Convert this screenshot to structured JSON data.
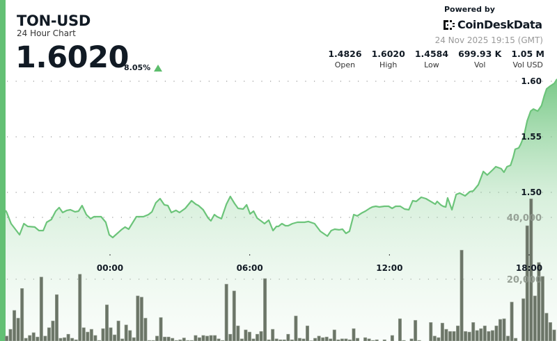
{
  "header": {
    "title": "TON-USD",
    "subtitle": "24 Hour Chart",
    "price": "1.6020",
    "change": "8.05%",
    "change_direction": "up",
    "change_icon": "triangle-up-icon"
  },
  "branding": {
    "powered_by": "Powered by",
    "logo_text": "CoinDeskData",
    "date": "24 Nov 2025 19:15 (GMT)"
  },
  "stats": [
    {
      "value": "1.4826",
      "label": "Open"
    },
    {
      "value": "1.6020",
      "label": "High"
    },
    {
      "value": "1.4584",
      "label": "Low"
    },
    {
      "value": "699.93 K",
      "label": "Vol"
    },
    {
      "value": "1.05 M",
      "label": "Vol USD"
    }
  ],
  "colors": {
    "accent": "#63c074",
    "line": "#6cc47a",
    "volume_bar": "#6b7567",
    "text": "#111a24"
  },
  "chart_data": {
    "type": "line",
    "grid": true,
    "price_axis": {
      "ticks": [
        "1.50",
        "1.55",
        "1.60"
      ],
      "ylim": [
        1.4475,
        1.6075
      ]
    },
    "volume_axis": {
      "ticks": [
        "20,000",
        "40,000"
      ],
      "ylim": [
        0,
        50000
      ]
    },
    "time_ticks": [
      "00:00",
      "06:00",
      "12:00",
      "18:00"
    ],
    "price_series": [
      [
        "19:31",
        1.4838
      ],
      [
        "19:34",
        1.4819
      ],
      [
        "19:45",
        1.4719
      ],
      [
        "20:07",
        1.4619
      ],
      [
        "20:18",
        1.4719
      ],
      [
        "20:28",
        1.4694
      ],
      [
        "20:46",
        1.4688
      ],
      [
        "20:57",
        1.4656
      ],
      [
        "21:08",
        1.4656
      ],
      [
        "21:17",
        1.4731
      ],
      [
        "21:29",
        1.4756
      ],
      [
        "21:40",
        1.4831
      ],
      [
        "21:49",
        1.4863
      ],
      [
        "21:58",
        1.4819
      ],
      [
        "22:09",
        1.4838
      ],
      [
        "22:18",
        1.4844
      ],
      [
        "22:30",
        1.4825
      ],
      [
        "22:39",
        1.4831
      ],
      [
        "22:48",
        1.4881
      ],
      [
        "22:59",
        1.48
      ],
      [
        "23:10",
        1.4763
      ],
      [
        "23:19",
        1.4781
      ],
      [
        "23:37",
        1.4781
      ],
      [
        "23:49",
        1.4731
      ],
      [
        "23:58",
        1.4619
      ],
      [
        "00:07",
        1.4594
      ],
      [
        "00:29",
        1.4663
      ],
      [
        "00:39",
        1.4688
      ],
      [
        "00:48",
        1.4669
      ],
      [
        "01:08",
        1.4781
      ],
      [
        "01:26",
        1.4781
      ],
      [
        "01:39",
        1.48
      ],
      [
        "01:48",
        1.4825
      ],
      [
        "01:58",
        1.4906
      ],
      [
        "02:09",
        1.4944
      ],
      [
        "02:20",
        1.4888
      ],
      [
        "02:29",
        1.4881
      ],
      [
        "02:38",
        1.4819
      ],
      [
        "02:50",
        1.4838
      ],
      [
        "02:59",
        1.4819
      ],
      [
        "03:14",
        1.4856
      ],
      [
        "03:30",
        1.4925
      ],
      [
        "03:41",
        1.4894
      ],
      [
        "03:48",
        1.4881
      ],
      [
        "04:00",
        1.4844
      ],
      [
        "04:13",
        1.4769
      ],
      [
        "04:20",
        1.4744
      ],
      [
        "04:29",
        1.48
      ],
      [
        "04:36",
        1.4781
      ],
      [
        "04:47",
        1.4763
      ],
      [
        "05:00",
        1.4894
      ],
      [
        "05:10",
        1.4963
      ],
      [
        "05:21",
        1.49
      ],
      [
        "05:30",
        1.4856
      ],
      [
        "05:43",
        1.485
      ],
      [
        "05:52",
        1.4888
      ],
      [
        "06:01",
        1.4806
      ],
      [
        "06:10",
        1.4831
      ],
      [
        "06:19",
        1.4769
      ],
      [
        "06:31",
        1.4738
      ],
      [
        "06:38",
        1.4719
      ],
      [
        "06:49",
        1.475
      ],
      [
        "07:00",
        1.4656
      ],
      [
        "07:09",
        1.4694
      ],
      [
        "07:14",
        1.4694
      ],
      [
        "07:23",
        1.4719
      ],
      [
        "07:32",
        1.47
      ],
      [
        "07:39",
        1.47
      ],
      [
        "07:50",
        1.4719
      ],
      [
        "08:03",
        1.4731
      ],
      [
        "08:21",
        1.4731
      ],
      [
        "08:31",
        1.4738
      ],
      [
        "08:47",
        1.4719
      ],
      [
        "09:02",
        1.465
      ],
      [
        "09:20",
        1.4606
      ],
      [
        "09:30",
        1.4656
      ],
      [
        "09:39",
        1.4669
      ],
      [
        "09:50",
        1.4663
      ],
      [
        "09:59",
        1.4669
      ],
      [
        "10:08",
        1.4631
      ],
      [
        "10:17",
        1.465
      ],
      [
        "10:28",
        1.48
      ],
      [
        "10:37",
        1.4788
      ],
      [
        "10:48",
        1.4813
      ],
      [
        "10:58",
        1.4831
      ],
      [
        "11:09",
        1.4856
      ],
      [
        "11:16",
        1.4869
      ],
      [
        "11:25",
        1.4875
      ],
      [
        "11:34",
        1.4869
      ],
      [
        "11:47",
        1.4875
      ],
      [
        "11:58",
        1.4875
      ],
      [
        "12:07",
        1.4856
      ],
      [
        "12:16",
        1.4875
      ],
      [
        "12:28",
        1.4875
      ],
      [
        "12:39",
        1.485
      ],
      [
        "12:50",
        1.4844
      ],
      [
        "13:00",
        1.4925
      ],
      [
        "13:09",
        1.4919
      ],
      [
        "13:22",
        1.4956
      ],
      [
        "13:34",
        1.4944
      ],
      [
        "13:49",
        1.4913
      ],
      [
        "13:58",
        1.4894
      ],
      [
        "14:03",
        1.4919
      ],
      [
        "14:12",
        1.4888
      ],
      [
        "14:18",
        1.4875
      ],
      [
        "14:25",
        1.4869
      ],
      [
        "14:30",
        1.495
      ],
      [
        "14:41",
        1.4844
      ],
      [
        "14:52",
        1.4981
      ],
      [
        "15:01",
        1.4994
      ],
      [
        "15:15",
        1.4969
      ],
      [
        "15:27",
        1.5006
      ],
      [
        "15:36",
        1.5013
      ],
      [
        "15:49",
        1.5069
      ],
      [
        "16:02",
        1.5188
      ],
      [
        "16:12",
        1.5156
      ],
      [
        "16:27",
        1.5206
      ],
      [
        "16:34",
        1.5231
      ],
      [
        "16:48",
        1.5213
      ],
      [
        "16:55",
        1.5181
      ],
      [
        "17:03",
        1.5231
      ],
      [
        "17:12",
        1.5244
      ],
      [
        "17:19",
        1.5319
      ],
      [
        "17:24",
        1.5388
      ],
      [
        "17:33",
        1.54
      ],
      [
        "17:38",
        1.5431
      ],
      [
        "17:46",
        1.55
      ],
      [
        "17:55",
        1.5644
      ],
      [
        "18:04",
        1.5731
      ],
      [
        "18:11",
        1.575
      ],
      [
        "18:22",
        1.5731
      ],
      [
        "18:32",
        1.5781
      ],
      [
        "18:39",
        1.5869
      ],
      [
        "18:45",
        1.5931
      ],
      [
        "18:54",
        1.5956
      ],
      [
        "19:05",
        1.5981
      ],
      [
        "19:12",
        1.602
      ]
    ],
    "volume_series": [
      1600,
      3800,
      9900,
      7400,
      17000,
      900,
      1800,
      2700,
      1300,
      20700,
      1600,
      4300,
      6500,
      15000,
      900,
      1100,
      2200,
      900,
      400,
      21600,
      4300,
      2900,
      3800,
      1800,
      200,
      4000,
      11700,
      4300,
      2000,
      6500,
      700,
      5200,
      3400,
      1100,
      14600,
      14200,
      7400,
      200,
      200,
      1600,
      7600,
      1300,
      1300,
      900,
      200,
      400,
      1000,
      200,
      200,
      1800,
      1100,
      1800,
      1600,
      1800,
      1800,
      700,
      200,
      18400,
      2200,
      16200,
      4900,
      700,
      3600,
      2900,
      700,
      2200,
      3100,
      20200,
      400,
      3800,
      700,
      400,
      400,
      2200,
      400,
      8100,
      900,
      700,
      4900,
      100,
      900,
      1600,
      1100,
      1300,
      700,
      3600,
      400,
      700,
      700,
      400,
      4000,
      900,
      0,
      1100,
      700,
      200,
      400,
      0,
      400,
      0,
      1800,
      0,
      7200,
      200,
      0,
      700,
      6700,
      200,
      0,
      0,
      6000,
      1600,
      1100,
      5800,
      3800,
      3100,
      3100,
      4900,
      29400,
      3100,
      2900,
      6000,
      3400,
      4000,
      4900,
      3100,
      3400,
      4900,
      7000,
      7200,
      1600,
      12600,
      900,
      0,
      13700,
      37300,
      46000,
      14600,
      25400,
      20900,
      9000,
      6000,
      3600
    ]
  }
}
